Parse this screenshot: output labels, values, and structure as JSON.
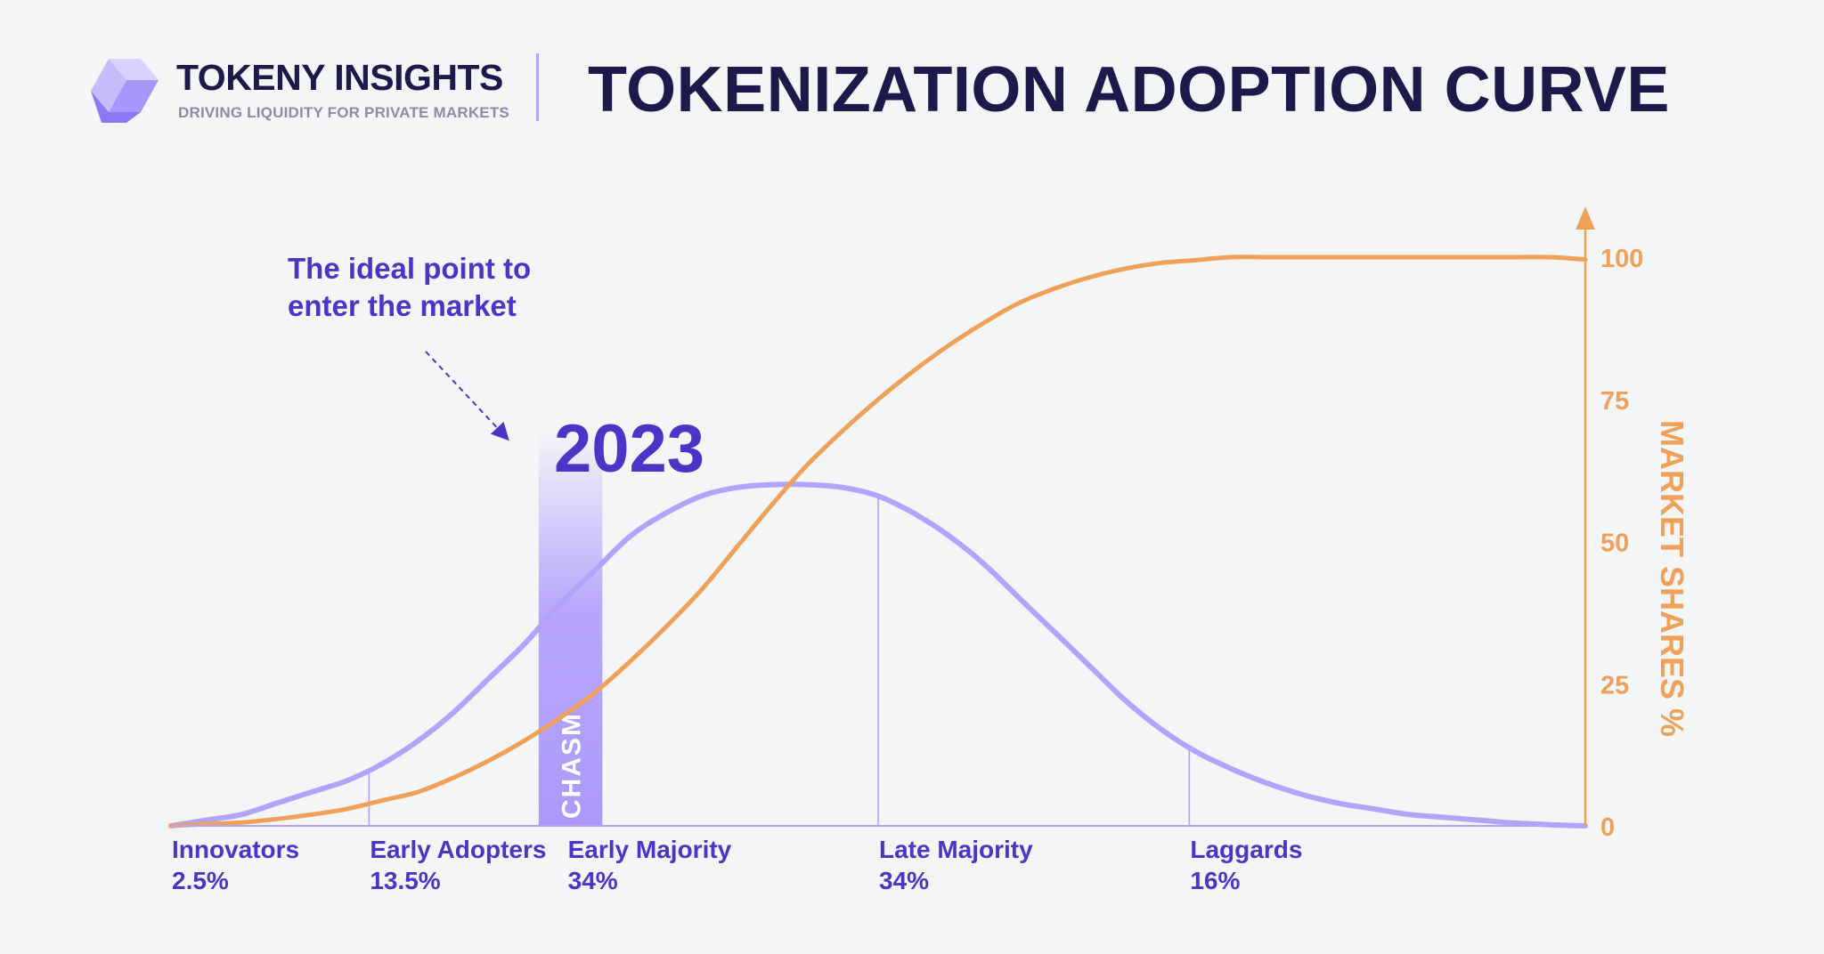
{
  "header": {
    "brand_name": "TOKENY INSIGHTS",
    "brand_tagline": "DRIVING LIQUIDITY FOR PRIVATE MARKETS",
    "title": "TOKENIZATION ADOPTION CURVE"
  },
  "colors": {
    "title": "#1b1a4a",
    "bell_curve": "#b3a4fb",
    "s_curve": "#f0a159",
    "annotation": "#4a35c6",
    "chasm": "#b09dfb",
    "background": "#f4f5f7"
  },
  "annotation": {
    "lines": [
      "The ideal point to",
      "enter the market"
    ]
  },
  "chasm": {
    "label": "CHASM",
    "year": "2023"
  },
  "chart_data": {
    "type": "line",
    "x": [
      0,
      0.5,
      1,
      1.5,
      2,
      2.5,
      3,
      3.5,
      4,
      4.5,
      5,
      5.5,
      6,
      6.5,
      7,
      7.5,
      8,
      8.5,
      9,
      9.5,
      10,
      10.5,
      11,
      11.5,
      12,
      12.5,
      13,
      13.5,
      14,
      14.5,
      15,
      15.5,
      16,
      16.5,
      17,
      17.5,
      18,
      18.5,
      19,
      19.5,
      20
    ],
    "series": [
      {
        "key": "adoption",
        "values": [
          0,
          1,
          2,
          4,
          6,
          8,
          11,
          15,
          20,
          26,
          32,
          39,
          45,
          51,
          55,
          58,
          59.5,
          60,
          60,
          59.5,
          58,
          55,
          51,
          46,
          40,
          34,
          28,
          22,
          17,
          13,
          10,
          7.5,
          5.5,
          4,
          3,
          2,
          1.5,
          1,
          0.5,
          0.2,
          0
        ]
      },
      {
        "name": "MARKET SHARES %",
        "values": [
          0,
          0.3,
          0.6,
          1.2,
          2,
          3,
          4.5,
          6,
          8.5,
          11.5,
          15,
          19,
          23.5,
          29,
          35,
          41.5,
          49,
          56.5,
          63.5,
          69.5,
          75,
          80,
          84.5,
          88.5,
          92,
          94.5,
          96.5,
          98,
          99,
          99.5,
          100,
          100,
          100,
          100,
          100,
          100,
          100,
          100,
          100,
          100,
          99.6
        ]
      }
    ],
    "segments": [
      {
        "name": "Innovators",
        "share": "2.5%",
        "start_x": 0
      },
      {
        "name": "Early Adopters",
        "share": "13.5%",
        "start_x": 2.8
      },
      {
        "name": "Early Majority",
        "share": "34%",
        "start_x": 5.6
      },
      {
        "name": "Late Majority",
        "share": "34%",
        "start_x": 10
      },
      {
        "name": "Laggards",
        "share": "16%",
        "start_x": 14.4
      }
    ],
    "dividers_x": [
      2.8,
      10,
      14.4
    ],
    "chasm_x": [
      5.2,
      6.1
    ],
    "xlim": [
      0,
      20
    ],
    "ylim": [
      0,
      100
    ],
    "yticks": [
      0,
      25,
      50,
      75,
      100
    ],
    "ylabel": "MARKET SHARES %",
    "y_axis_position": "right",
    "grid": false
  }
}
